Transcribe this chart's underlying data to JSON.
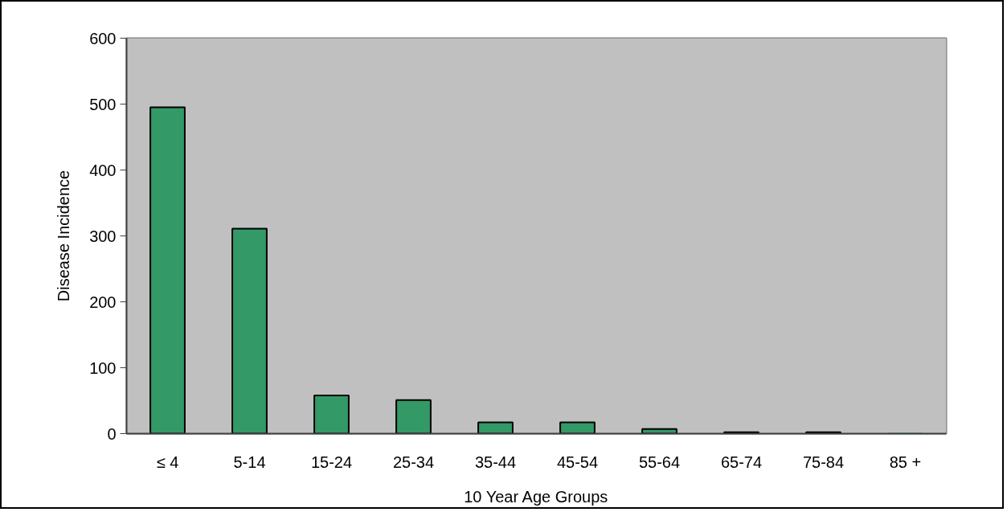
{
  "chart_data": {
    "type": "bar",
    "xlabel": "10 Year Age Groups",
    "ylabel": "Disease Incidence",
    "categories": [
      "≤ 4",
      "5-14",
      "15-24",
      "25-34",
      "35-44",
      "45-54",
      "55-64",
      "65-74",
      "75-84",
      "85 +"
    ],
    "values": [
      495,
      311,
      58,
      51,
      17,
      17,
      7,
      2,
      2,
      0
    ],
    "color": "#339966",
    "ylim": [
      0,
      600
    ],
    "yticks": [
      0,
      100,
      200,
      300,
      400,
      500,
      600
    ],
    "grid": false
  }
}
